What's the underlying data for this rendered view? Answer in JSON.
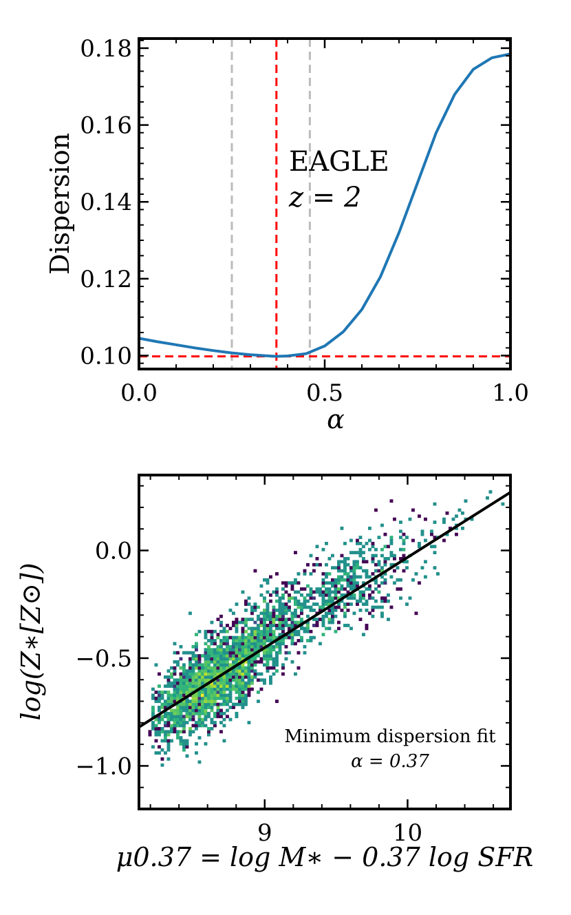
{
  "chart_data": [
    {
      "type": "line",
      "panel": "top",
      "xlabel": "α",
      "ylabel": "Dispersion",
      "xlim": [
        0.0,
        1.0
      ],
      "ylim": [
        0.0965,
        0.1825
      ],
      "xticks": [
        0.0,
        0.5,
        1.0
      ],
      "xtick_labels": [
        "0.0",
        "0.5",
        "1.0"
      ],
      "yticks": [
        0.1,
        0.12,
        0.14,
        0.16,
        0.18
      ],
      "ytick_labels": [
        "0.10",
        "0.12",
        "0.14",
        "0.16",
        "0.18"
      ],
      "annotation_lines": [
        "EAGLE",
        "z = 2"
      ],
      "series": [
        {
          "name": "dispersion curve",
          "color": "#1f77b4",
          "x": [
            0.0,
            0.05,
            0.1,
            0.15,
            0.2,
            0.25,
            0.3,
            0.35,
            0.37,
            0.4,
            0.45,
            0.5,
            0.55,
            0.6,
            0.65,
            0.7,
            0.75,
            0.8,
            0.85,
            0.9,
            0.95,
            1.0
          ],
          "y": [
            0.1045,
            0.1036,
            0.1028,
            0.102,
            0.1013,
            0.1007,
            0.1002,
            0.0999,
            0.0998,
            0.0999,
            0.1005,
            0.1025,
            0.1062,
            0.112,
            0.1205,
            0.132,
            0.145,
            0.158,
            0.168,
            0.1745,
            0.1775,
            0.1785
          ]
        }
      ],
      "reference_lines": {
        "best_alpha": 0.37,
        "best_alpha_color": "#ff0000",
        "alpha_range": [
          0.25,
          0.46
        ],
        "alpha_range_color": "#bbbbbb",
        "min_dispersion": 0.0998,
        "min_dispersion_color": "#ff0000"
      }
    },
    {
      "type": "heatmap",
      "panel": "bottom",
      "xlabel": "μ0.37 = log M∗ − 0.37 log SFR",
      "ylabel": "log(Z∗[Z⊙])",
      "xlim": [
        8.12,
        10.72
      ],
      "ylim": [
        -1.2,
        0.35
      ],
      "xticks": [
        9,
        10
      ],
      "xtick_labels": [
        "9",
        "10"
      ],
      "yticks": [
        0.0,
        -0.5,
        -1.0
      ],
      "ytick_labels": [
        "0.0",
        "−0.5",
        "−1.0"
      ],
      "colormap": "viridis",
      "annotation_lines": [
        "Minimum dispersion fit",
        "α = 0.37"
      ],
      "fit_line": {
        "slope": 0.42,
        "x_at": [
          8.12,
          10.72
        ],
        "y_at": [
          -0.82,
          0.27
        ],
        "color": "#000000"
      },
      "density_peak": {
        "x": 8.6,
        "y": -0.62
      },
      "scatter_sigma": 0.1,
      "seed": 7
    }
  ]
}
